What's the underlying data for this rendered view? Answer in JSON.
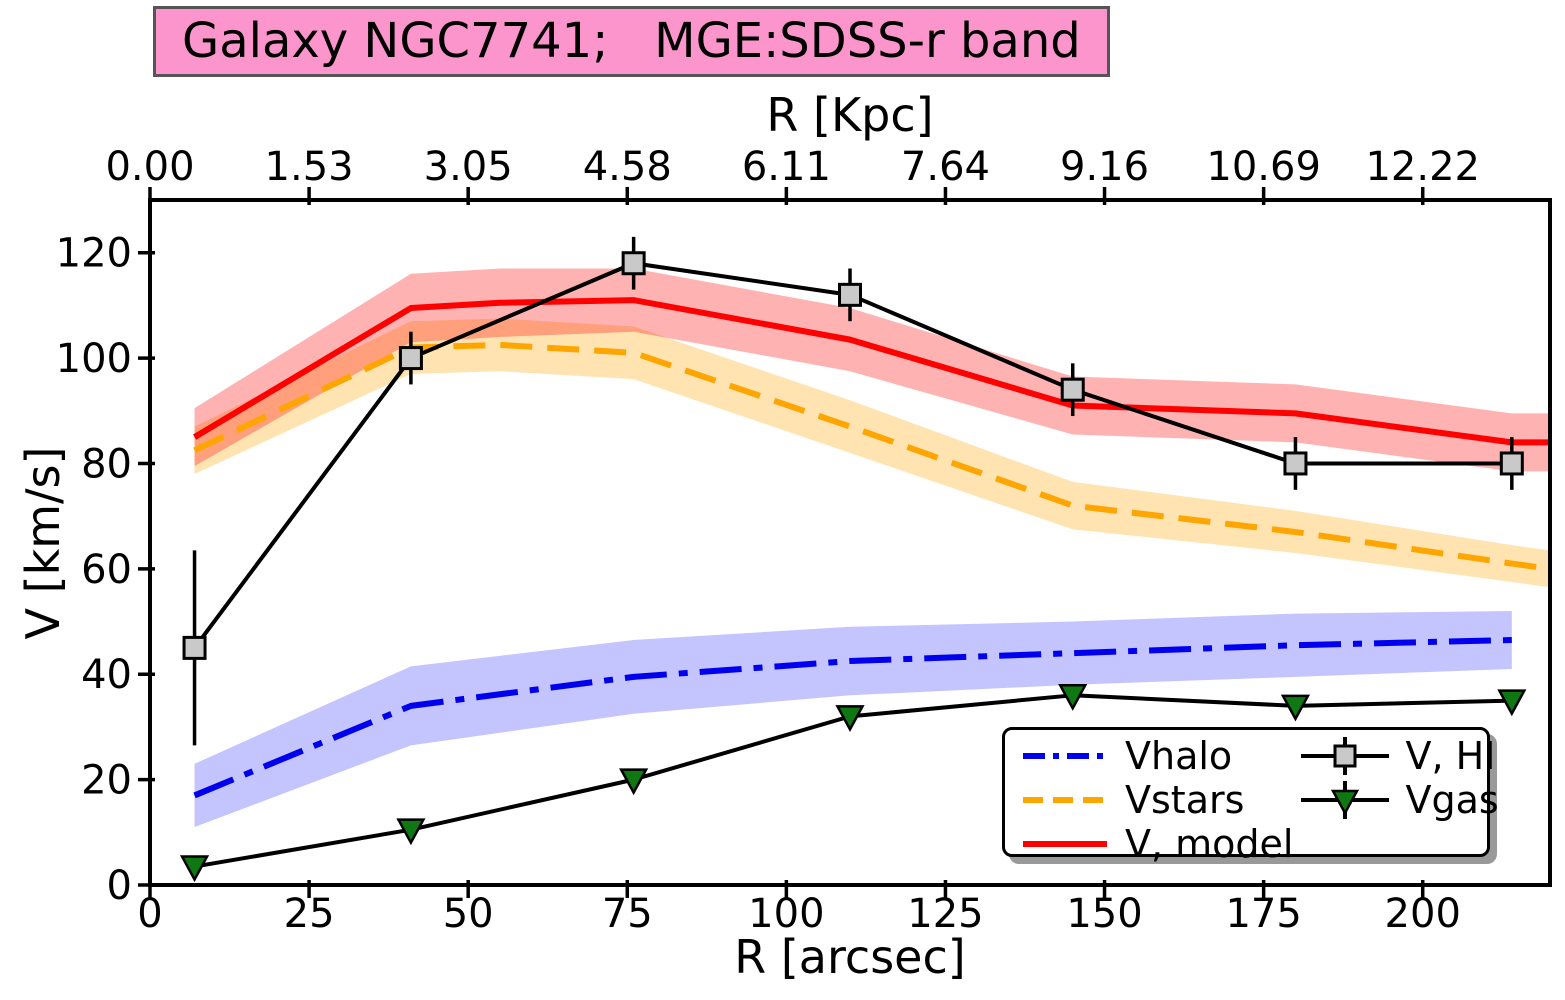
{
  "title_box": {
    "text": "Galaxy NGC7741;   MGE:SDSS-r band",
    "bg_color": "#FB95CC",
    "border_color": "#555555"
  },
  "chart_data": {
    "type": "line",
    "title": "Galaxy NGC7741;   MGE:SDSS-r band",
    "xlabel": "R [arcsec]",
    "ylabel": "V [km/s]",
    "top_xlabel": "R [Kpc]",
    "xlim": [
      0,
      220
    ],
    "ylim": [
      0,
      130
    ],
    "grid": false,
    "legend_position": "lower right inside",
    "x_ticks": [
      0,
      25,
      50,
      75,
      100,
      125,
      150,
      175,
      200
    ],
    "y_ticks": [
      0,
      20,
      40,
      60,
      80,
      100,
      120
    ],
    "top_ticks_arcsec": [
      0,
      25,
      50,
      75,
      100,
      125,
      150,
      175,
      200
    ],
    "top_tick_labels": [
      "0.00",
      "1.53",
      "3.05",
      "4.58",
      "6.11",
      "7.64",
      "9.16",
      "10.69",
      "12.22"
    ],
    "kpc_per_arcsec": 0.0611,
    "series": [
      {
        "name": "vhalo",
        "label": "Vhalo",
        "kind": "band-line",
        "color": "#0000ee",
        "dash": "dashdot",
        "band_color": "rgba(70,70,255,0.32)",
        "x": [
          7,
          41,
          76,
          110,
          145,
          180,
          214
        ],
        "y": [
          17,
          34,
          39.5,
          42.5,
          44,
          45.5,
          46.5
        ],
        "band_half": [
          6,
          7.5,
          7,
          6.5,
          6,
          6,
          5.5
        ]
      },
      {
        "name": "vstars",
        "label": "Vstars",
        "kind": "band-line",
        "color": "#ffa500",
        "dash": "dashed",
        "band_color": "rgba(255,165,0,0.30)",
        "x": [
          7,
          41,
          55,
          76,
          110,
          145,
          180,
          214,
          220
        ],
        "y": [
          82.5,
          102,
          102.5,
          101,
          87,
          72,
          67,
          61,
          60
        ],
        "band_half": [
          4.5,
          5,
          5,
          5,
          5,
          4.5,
          4,
          3.5,
          3.5
        ]
      },
      {
        "name": "vmodel",
        "label": "V, model",
        "kind": "band-line",
        "color": "#ff0000",
        "dash": "solid",
        "band_color": "rgba(255,0,0,0.30)",
        "x": [
          7,
          41,
          55,
          76,
          110,
          145,
          180,
          214,
          220
        ],
        "y": [
          85,
          109.5,
          110.5,
          111,
          103.5,
          91,
          89.5,
          84,
          84
        ],
        "band_half": [
          5.5,
          6.5,
          6.5,
          6,
          6,
          5.5,
          5.5,
          5.5,
          5.5
        ]
      },
      {
        "name": "vhi",
        "label": "V, HI",
        "kind": "marker-line",
        "color": "#000000",
        "marker": "square",
        "marker_fill": "#c9c9c9",
        "x": [
          7,
          41,
          76,
          110,
          145,
          180,
          214
        ],
        "y": [
          45,
          100,
          118,
          112,
          94,
          80,
          80
        ],
        "yerr": [
          18.5,
          5,
          5,
          5,
          5,
          5,
          5
        ]
      },
      {
        "name": "vgas",
        "label": "Vgas",
        "kind": "marker-line",
        "color": "#000000",
        "marker": "triangle-down",
        "marker_fill": "#107812",
        "x": [
          7,
          41,
          76,
          110,
          145,
          180,
          214
        ],
        "y": [
          3.5,
          10.5,
          20,
          32,
          36,
          34,
          35
        ]
      }
    ]
  },
  "legend": {
    "column1": [
      "Vhalo",
      "Vstars",
      "V, model"
    ],
    "column2": [
      "V, HI",
      "Vgas"
    ]
  }
}
